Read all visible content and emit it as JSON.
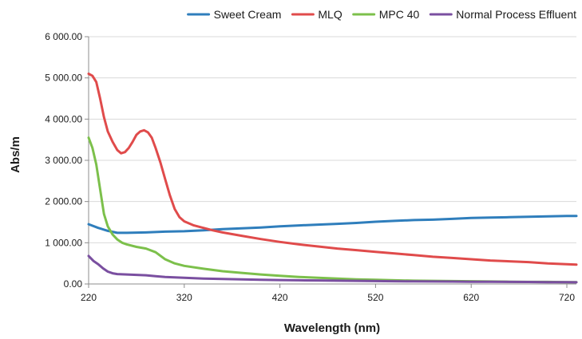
{
  "chart_data": {
    "type": "line",
    "title": "",
    "xlabel": "Wavelength (nm)",
    "ylabel": "Abs/m",
    "xlim": [
      220,
      730
    ],
    "ylim": [
      0,
      6000
    ],
    "grid": "horizontal",
    "legend_position": "top",
    "x_ticks": [
      {
        "value": 220,
        "label": "220"
      },
      {
        "value": 320,
        "label": "320"
      },
      {
        "value": 420,
        "label": "420"
      },
      {
        "value": 520,
        "label": "520"
      },
      {
        "value": 620,
        "label": "620"
      },
      {
        "value": 720,
        "label": "720"
      }
    ],
    "y_ticks": [
      {
        "value": 0,
        "label": "0.00"
      },
      {
        "value": 1000,
        "label": "1 000.00"
      },
      {
        "value": 2000,
        "label": "2 000.00"
      },
      {
        "value": 3000,
        "label": "3 000.00"
      },
      {
        "value": 4000,
        "label": "4 000.00"
      },
      {
        "value": 5000,
        "label": "5 000.00"
      },
      {
        "value": 6000,
        "label": "6 000.00"
      }
    ],
    "series": [
      {
        "name": "Sweet Cream",
        "color": "#2f7ebc",
        "points": [
          [
            220,
            1450
          ],
          [
            230,
            1360
          ],
          [
            240,
            1290
          ],
          [
            250,
            1240
          ],
          [
            260,
            1240
          ],
          [
            280,
            1250
          ],
          [
            300,
            1270
          ],
          [
            320,
            1280
          ],
          [
            340,
            1300
          ],
          [
            360,
            1330
          ],
          [
            380,
            1350
          ],
          [
            400,
            1370
          ],
          [
            420,
            1400
          ],
          [
            440,
            1420
          ],
          [
            460,
            1440
          ],
          [
            480,
            1460
          ],
          [
            500,
            1480
          ],
          [
            520,
            1510
          ],
          [
            540,
            1530
          ],
          [
            560,
            1550
          ],
          [
            580,
            1560
          ],
          [
            600,
            1580
          ],
          [
            620,
            1600
          ],
          [
            640,
            1610
          ],
          [
            660,
            1620
          ],
          [
            680,
            1630
          ],
          [
            700,
            1640
          ],
          [
            720,
            1650
          ],
          [
            730,
            1650
          ]
        ]
      },
      {
        "name": "MLQ",
        "color": "#e04b4b",
        "points": [
          [
            220,
            5100
          ],
          [
            224,
            5050
          ],
          [
            228,
            4900
          ],
          [
            232,
            4500
          ],
          [
            236,
            4050
          ],
          [
            240,
            3700
          ],
          [
            245,
            3450
          ],
          [
            250,
            3250
          ],
          [
            254,
            3170
          ],
          [
            258,
            3200
          ],
          [
            262,
            3300
          ],
          [
            266,
            3450
          ],
          [
            270,
            3620
          ],
          [
            274,
            3700
          ],
          [
            278,
            3730
          ],
          [
            282,
            3680
          ],
          [
            286,
            3550
          ],
          [
            290,
            3300
          ],
          [
            295,
            2950
          ],
          [
            300,
            2550
          ],
          [
            305,
            2150
          ],
          [
            310,
            1820
          ],
          [
            315,
            1620
          ],
          [
            320,
            1520
          ],
          [
            330,
            1420
          ],
          [
            340,
            1360
          ],
          [
            350,
            1300
          ],
          [
            360,
            1250
          ],
          [
            380,
            1170
          ],
          [
            400,
            1090
          ],
          [
            420,
            1020
          ],
          [
            440,
            960
          ],
          [
            460,
            910
          ],
          [
            480,
            860
          ],
          [
            500,
            820
          ],
          [
            520,
            780
          ],
          [
            540,
            740
          ],
          [
            560,
            700
          ],
          [
            580,
            660
          ],
          [
            600,
            630
          ],
          [
            620,
            600
          ],
          [
            640,
            570
          ],
          [
            660,
            550
          ],
          [
            680,
            530
          ],
          [
            700,
            500
          ],
          [
            720,
            480
          ],
          [
            730,
            470
          ]
        ]
      },
      {
        "name": "MPC 40",
        "color": "#7cc04b",
        "points": [
          [
            220,
            3550
          ],
          [
            224,
            3300
          ],
          [
            228,
            2900
          ],
          [
            232,
            2300
          ],
          [
            236,
            1700
          ],
          [
            240,
            1400
          ],
          [
            245,
            1200
          ],
          [
            250,
            1080
          ],
          [
            255,
            1000
          ],
          [
            260,
            960
          ],
          [
            270,
            900
          ],
          [
            280,
            860
          ],
          [
            290,
            770
          ],
          [
            300,
            600
          ],
          [
            310,
            500
          ],
          [
            320,
            440
          ],
          [
            340,
            370
          ],
          [
            360,
            310
          ],
          [
            380,
            270
          ],
          [
            400,
            230
          ],
          [
            420,
            200
          ],
          [
            440,
            170
          ],
          [
            460,
            150
          ],
          [
            480,
            130
          ],
          [
            500,
            110
          ],
          [
            520,
            100
          ],
          [
            540,
            90
          ],
          [
            560,
            80
          ],
          [
            580,
            75
          ],
          [
            600,
            70
          ],
          [
            620,
            65
          ],
          [
            640,
            60
          ],
          [
            660,
            55
          ],
          [
            680,
            50
          ],
          [
            700,
            50
          ],
          [
            720,
            45
          ],
          [
            730,
            45
          ]
        ]
      },
      {
        "name": "Normal Process Effluent",
        "color": "#7a4fa0",
        "points": [
          [
            220,
            680
          ],
          [
            225,
            560
          ],
          [
            230,
            480
          ],
          [
            235,
            380
          ],
          [
            240,
            300
          ],
          [
            245,
            260
          ],
          [
            250,
            240
          ],
          [
            260,
            230
          ],
          [
            270,
            220
          ],
          [
            280,
            210
          ],
          [
            290,
            190
          ],
          [
            300,
            170
          ],
          [
            320,
            150
          ],
          [
            340,
            130
          ],
          [
            360,
            120
          ],
          [
            380,
            110
          ],
          [
            400,
            100
          ],
          [
            420,
            95
          ],
          [
            440,
            90
          ],
          [
            460,
            85
          ],
          [
            480,
            80
          ],
          [
            500,
            75
          ],
          [
            520,
            70
          ],
          [
            540,
            65
          ],
          [
            560,
            62
          ],
          [
            580,
            60
          ],
          [
            600,
            58
          ],
          [
            620,
            55
          ],
          [
            640,
            52
          ],
          [
            660,
            50
          ],
          [
            680,
            48
          ],
          [
            700,
            45
          ],
          [
            720,
            42
          ],
          [
            730,
            40
          ]
        ]
      }
    ]
  }
}
